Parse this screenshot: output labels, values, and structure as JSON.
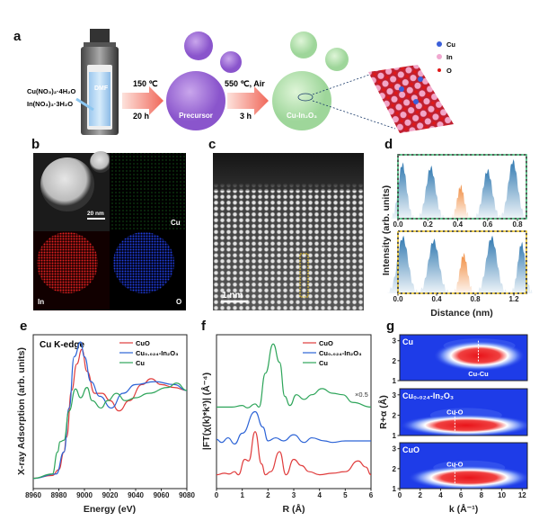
{
  "panel_a": {
    "label": "a",
    "reagent1": "Cu(NO₃)₂·4H₂O",
    "reagent2": "In(NO₃)₃·3H₂O",
    "solvent": "DMF",
    "step1_temp": "150 ℃",
    "step1_time": "20 h",
    "precursor": "Precursor",
    "step2_temp": "550 ℃, Air",
    "step2_time": "3 h",
    "product": "Cu-In₂O₃",
    "legend": [
      {
        "label": "Cu",
        "color": "#3b5fd9"
      },
      {
        "label": "In",
        "color": "#f0a8d0"
      },
      {
        "label": "O",
        "color": "#e01818"
      }
    ]
  },
  "panel_b": {
    "label": "b",
    "scale_bar": "20 nm",
    "maps": [
      "Cu",
      "In",
      "O"
    ]
  },
  "panel_c": {
    "label": "c",
    "scale_bar": "1 nm"
  },
  "panel_d": {
    "label": "d",
    "ylabel": "Intensity (arb. units)",
    "xlabel": "Distance (nm)"
  },
  "panel_e": {
    "label": "e",
    "annotation": "Cu K-edge"
  },
  "panel_f": {
    "label": "f",
    "annotation": "×0.5"
  },
  "panel_g": {
    "label": "g"
  },
  "chart_data": [
    {
      "id": "d-top",
      "type": "area",
      "xlabel": "",
      "ylabel": "Intensity (arb. units)",
      "xlim": [
        0,
        0.86
      ],
      "xticks": [
        "0.0",
        "0.2",
        "0.4",
        "0.6",
        "0.8"
      ],
      "xtick_values": [
        0,
        0.2,
        0.4,
        0.6,
        0.8
      ],
      "peaks": [
        {
          "x": 0.03,
          "height": 0.85,
          "width": 0.035,
          "color": "#2f78b0"
        },
        {
          "x": 0.22,
          "height": 0.8,
          "width": 0.04,
          "color": "#2f78b0"
        },
        {
          "x": 0.42,
          "height": 0.5,
          "width": 0.03,
          "color": "#f08a3c"
        },
        {
          "x": 0.6,
          "height": 0.75,
          "width": 0.04,
          "color": "#2f78b0"
        },
        {
          "x": 0.77,
          "height": 0.9,
          "width": 0.04,
          "color": "#2f78b0"
        }
      ],
      "frame_color": "#3cb371"
    },
    {
      "id": "d-bottom",
      "type": "area",
      "xlabel": "Distance (nm)",
      "xlim": [
        0,
        1.33
      ],
      "xticks": [
        "0.0",
        "0.4",
        "0.8",
        "1.2"
      ],
      "xtick_values": [
        0,
        0.4,
        0.8,
        1.2
      ],
      "peaks": [
        {
          "x": 0.05,
          "height": 0.9,
          "width": 0.07,
          "color": "#2f78b0"
        },
        {
          "x": 0.37,
          "height": 0.85,
          "width": 0.07,
          "color": "#2f78b0"
        },
        {
          "x": 0.68,
          "height": 0.62,
          "width": 0.05,
          "color": "#f08a3c"
        },
        {
          "x": 0.97,
          "height": 0.9,
          "width": 0.07,
          "color": "#2f78b0"
        },
        {
          "x": 1.28,
          "height": 0.8,
          "width": 0.05,
          "color": "#2f78b0"
        }
      ],
      "frame_color": "#e8c020"
    },
    {
      "id": "e",
      "type": "line",
      "title": "Cu K-edge",
      "xlabel": "Energy (eV)",
      "ylabel": "X-ray Adsorption (arb. units)",
      "xlim": [
        8960,
        9080
      ],
      "ylim": [
        -0.05,
        1.0
      ],
      "xticks": [
        "8960",
        "8980",
        "9000",
        "9020",
        "9040",
        "9060",
        "9080"
      ],
      "xtick_values": [
        8960,
        8980,
        9000,
        9020,
        9040,
        9060,
        9080
      ],
      "legend_position": "top-right",
      "series": [
        {
          "name": "CuO",
          "color": "#e03c3c",
          "points": [
            [
              8960,
              0.02
            ],
            [
              8975,
              0.04
            ],
            [
              8980,
              0.08
            ],
            [
              8984,
              0.2
            ],
            [
              8986,
              0.3
            ],
            [
              8990,
              0.62
            ],
            [
              8994,
              0.8
            ],
            [
              8998,
              0.9
            ],
            [
              9002,
              0.75
            ],
            [
              9008,
              0.6
            ],
            [
              9014,
              0.6
            ],
            [
              9020,
              0.55
            ],
            [
              9027,
              0.48
            ],
            [
              9035,
              0.55
            ],
            [
              9045,
              0.66
            ],
            [
              9052,
              0.7
            ],
            [
              9060,
              0.66
            ],
            [
              9070,
              0.64
            ],
            [
              9080,
              0.62
            ]
          ]
        },
        {
          "name": "Cu₀.₀₂₄-In₂O₃",
          "color": "#2c63d6",
          "points": [
            [
              8960,
              0.02
            ],
            [
              8978,
              0.05
            ],
            [
              8984,
              0.2
            ],
            [
              8988,
              0.5
            ],
            [
              8992,
              0.85
            ],
            [
              8997,
              0.95
            ],
            [
              9000,
              0.85
            ],
            [
              9005,
              0.68
            ],
            [
              9012,
              0.58
            ],
            [
              9021,
              0.5
            ],
            [
              9030,
              0.6
            ],
            [
              9040,
              0.66
            ],
            [
              9055,
              0.68
            ],
            [
              9070,
              0.66
            ],
            [
              9080,
              0.62
            ]
          ]
        },
        {
          "name": "Cu",
          "color": "#2ea55a",
          "points": [
            [
              8960,
              0.02
            ],
            [
              8975,
              0.05
            ],
            [
              8979,
              0.2
            ],
            [
              8981,
              0.27
            ],
            [
              8984,
              0.28
            ],
            [
              8988,
              0.48
            ],
            [
              8993,
              0.63
            ],
            [
              8997,
              0.57
            ],
            [
              9002,
              0.64
            ],
            [
              9006,
              0.55
            ],
            [
              9013,
              0.5
            ],
            [
              9018,
              0.55
            ],
            [
              9025,
              0.6
            ],
            [
              9032,
              0.55
            ],
            [
              9040,
              0.57
            ],
            [
              9050,
              0.6
            ],
            [
              9065,
              0.64
            ],
            [
              9072,
              0.67
            ],
            [
              9080,
              0.62
            ]
          ]
        }
      ]
    },
    {
      "id": "f",
      "type": "line",
      "xlabel": "R (Å)",
      "ylabel": "|FT(χ(k)*k³)| (Å⁻⁴)",
      "xlim": [
        0,
        6
      ],
      "ylim": [
        0,
        10
      ],
      "xticks": [
        "0",
        "1",
        "2",
        "3",
        "4",
        "5",
        "6"
      ],
      "xtick_values": [
        0,
        1,
        2,
        3,
        4,
        5,
        6
      ],
      "legend_position": "top-right",
      "series": [
        {
          "name": "CuO",
          "color": "#e03c3c",
          "points": [
            [
              0,
              0.9
            ],
            [
              0.3,
              1.0
            ],
            [
              0.5,
              0.95
            ],
            [
              0.7,
              1.1
            ],
            [
              0.85,
              0.9
            ],
            [
              1.1,
              1.9
            ],
            [
              1.25,
              1.8
            ],
            [
              1.5,
              3.7
            ],
            [
              1.75,
              1.6
            ],
            [
              1.9,
              0.9
            ],
            [
              2.1,
              1.1
            ],
            [
              2.45,
              2.4
            ],
            [
              2.7,
              0.9
            ],
            [
              3.0,
              1.9
            ],
            [
              3.3,
              1.5
            ],
            [
              3.6,
              1.1
            ],
            [
              4.0,
              0.9
            ],
            [
              4.5,
              1.0
            ],
            [
              5.0,
              1.1
            ],
            [
              5.5,
              1.8
            ],
            [
              5.8,
              1.4
            ],
            [
              6,
              0.9
            ]
          ]
        },
        {
          "name": "Cu₀.₀₂₄-In₂O₃",
          "color": "#2c63d6",
          "points": [
            [
              0,
              3.2
            ],
            [
              0.2,
              3.0
            ],
            [
              0.45,
              3.3
            ],
            [
              0.7,
              2.9
            ],
            [
              1.0,
              3.6
            ],
            [
              1.5,
              5.0
            ],
            [
              1.8,
              4.0
            ],
            [
              2.0,
              3.1
            ],
            [
              2.3,
              3.3
            ],
            [
              2.6,
              3.1
            ],
            [
              3.0,
              3.5
            ],
            [
              3.4,
              3.0
            ],
            [
              3.7,
              3.3
            ],
            [
              4.2,
              3.1
            ],
            [
              4.5,
              3.0
            ],
            [
              5,
              3.1
            ],
            [
              5.5,
              3.1
            ],
            [
              6,
              3.1
            ]
          ]
        },
        {
          "name": "Cu",
          "color": "#2ea55a",
          "points": [
            [
              0,
              5.3
            ],
            [
              0.6,
              5.3
            ],
            [
              1.0,
              5.4
            ],
            [
              1.2,
              5.25
            ],
            [
              1.5,
              5.5
            ],
            [
              1.65,
              5.3
            ],
            [
              1.9,
              7.5
            ],
            [
              2.2,
              9.4
            ],
            [
              2.45,
              8.2
            ],
            [
              2.65,
              6.0
            ],
            [
              2.85,
              5.4
            ],
            [
              3.1,
              6.1
            ],
            [
              3.4,
              5.8
            ],
            [
              3.7,
              6.1
            ],
            [
              4.1,
              6.5
            ],
            [
              4.5,
              6.2
            ],
            [
              4.9,
              6.1
            ],
            [
              5.3,
              5.6
            ],
            [
              6,
              5.3
            ]
          ]
        }
      ]
    },
    {
      "id": "g",
      "type": "heatmap",
      "xlabel": "k (Å⁻¹)",
      "ylabel": "R+α (Å)",
      "xlim": [
        0,
        12.5
      ],
      "ylim": [
        1,
        3.3
      ],
      "xticks": [
        "0",
        "2",
        "4",
        "6",
        "8",
        "10",
        "12"
      ],
      "xtick_values": [
        0,
        2,
        4,
        6,
        8,
        10,
        12
      ],
      "yticks": [
        "1",
        "2",
        "3"
      ],
      "ytick_values": [
        1,
        2,
        3
      ],
      "panels": [
        {
          "name": "Cu",
          "peak_k": 7.8,
          "peak_R": 2.25,
          "spread_k": 4.5,
          "spread_R": 0.35,
          "marker": "Cu-Cu",
          "marker_k": 7.7
        },
        {
          "name": "Cu₀.₀₂₄-In₂O₃",
          "peak_k": 6.5,
          "peak_R": 1.5,
          "spread_k": 6.5,
          "spread_R": 0.25,
          "marker": "Cu-O",
          "marker_k": 5.4
        },
        {
          "name": "CuO",
          "peak_k": 6.8,
          "peak_R": 1.55,
          "spread_k": 6.0,
          "spread_R": 0.28,
          "marker": "Cu-O",
          "marker_k": 5.4
        }
      ]
    }
  ]
}
